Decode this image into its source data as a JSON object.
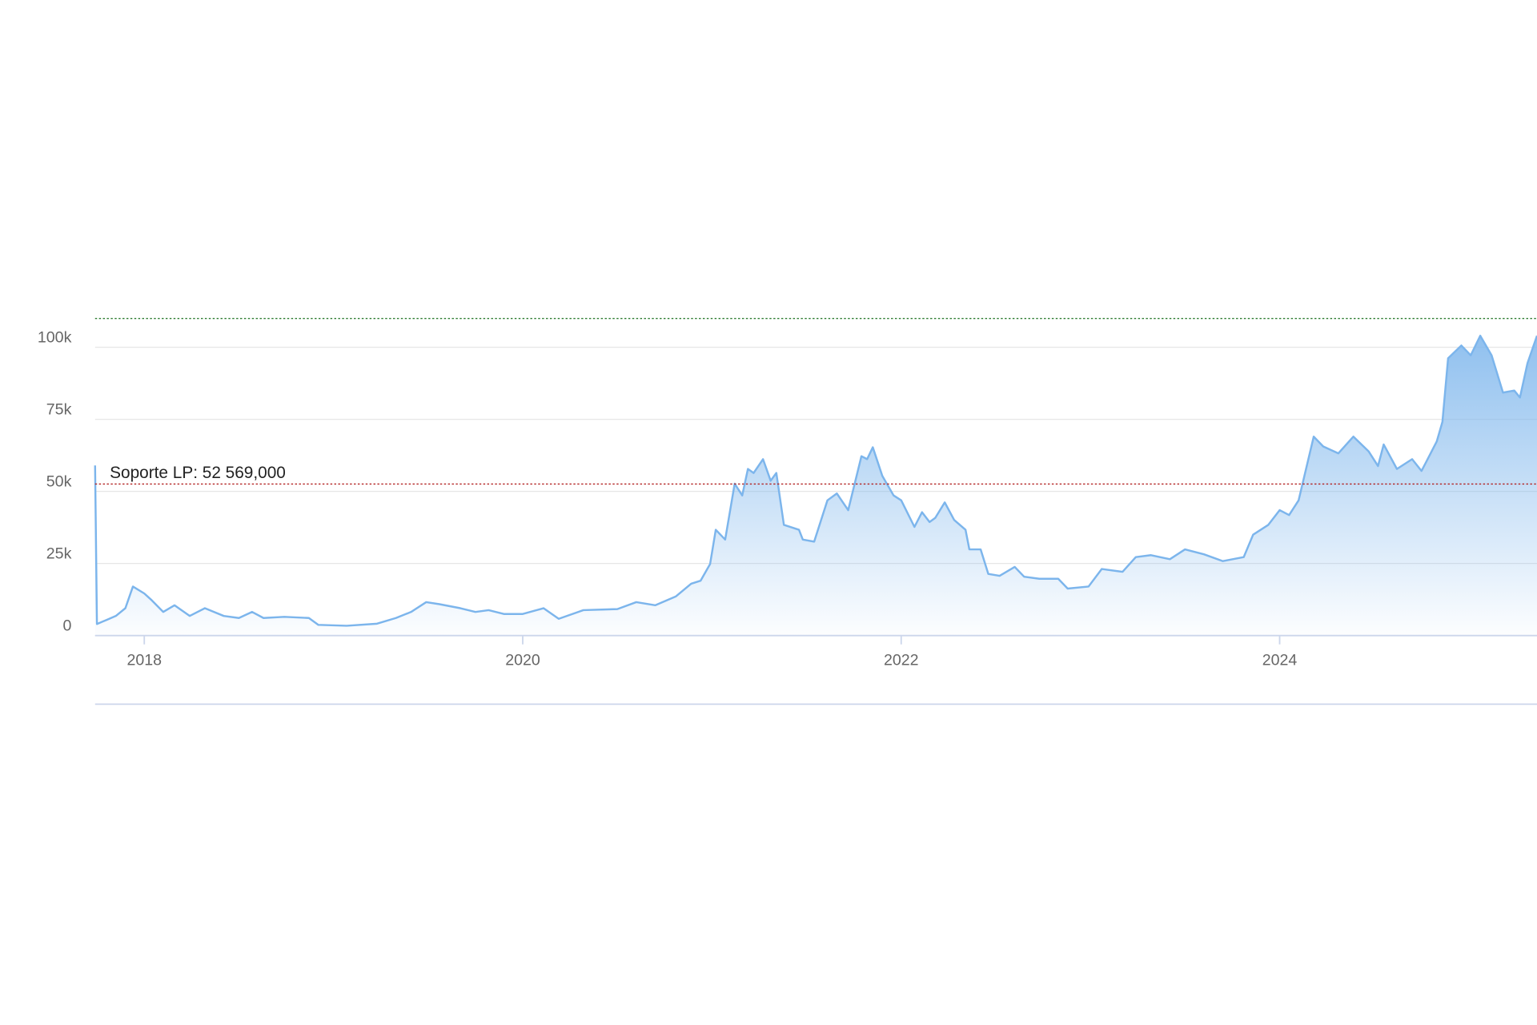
{
  "chart_data": {
    "type": "area",
    "color": "#7cb5ec",
    "x": [
      2017.74,
      2017.75,
      2017.8,
      2017.85,
      2017.9,
      2017.94,
      2018.0,
      2018.04,
      2018.1,
      2018.16,
      2018.24,
      2018.32,
      2018.42,
      2018.5,
      2018.57,
      2018.63,
      2018.74,
      2018.87,
      2018.92,
      2019.07,
      2019.23,
      2019.33,
      2019.41,
      2019.49,
      2019.56,
      2019.67,
      2019.75,
      2019.82,
      2019.9,
      2020.0,
      2020.11,
      2020.19,
      2020.32,
      2020.5,
      2020.6,
      2020.7,
      2020.81,
      2020.89,
      2020.94,
      2020.99,
      2021.02,
      2021.07,
      2021.12,
      2021.16,
      2021.19,
      2021.22,
      2021.27,
      2021.31,
      2021.34,
      2021.38,
      2021.46,
      2021.48,
      2021.54,
      2021.61,
      2021.66,
      2021.72,
      2021.79,
      2021.82,
      2021.85,
      2021.9,
      2021.96,
      2022.0,
      2022.07,
      2022.11,
      2022.15,
      2022.18,
      2022.23,
      2022.28,
      2022.34,
      2022.36,
      2022.42,
      2022.46,
      2022.52,
      2022.6,
      2022.65,
      2022.73,
      2022.83,
      2022.88,
      2022.99,
      2023.06,
      2023.17,
      2023.24,
      2023.32,
      2023.42,
      2023.5,
      2023.6,
      2023.7,
      2023.81,
      2023.86,
      2023.94,
      2024.0,
      2024.05,
      2024.1,
      2024.18,
      2024.23,
      2024.31,
      2024.39,
      2024.47,
      2024.52,
      2024.55,
      2024.62,
      2024.7,
      2024.75,
      2024.83,
      2024.86,
      2024.89,
      2024.96,
      2025.01,
      2025.06,
      2025.12,
      2025.18,
      2025.24,
      2025.27,
      2025.31,
      2025.36
    ],
    "values": [
      59000,
      4000,
      5400,
      6800,
      9500,
      17000,
      14600,
      12200,
      8200,
      10500,
      6800,
      9500,
      6800,
      6100,
      8200,
      6100,
      6500,
      6100,
      3700,
      3400,
      4100,
      6100,
      8200,
      11600,
      10900,
      9500,
      8200,
      8800,
      7500,
      7500,
      9500,
      5800,
      8800,
      9200,
      11600,
      10500,
      13600,
      18000,
      19000,
      24800,
      36700,
      33300,
      52700,
      48600,
      57800,
      56400,
      61200,
      53700,
      56400,
      38400,
      36700,
      33300,
      32600,
      46900,
      49300,
      43500,
      62200,
      61200,
      65300,
      55400,
      48600,
      46900,
      37700,
      42800,
      39400,
      40800,
      46200,
      40100,
      36700,
      29900,
      29900,
      21400,
      20700,
      23800,
      20400,
      19700,
      19700,
      16300,
      17000,
      23100,
      22100,
      27200,
      27900,
      26500,
      29900,
      28200,
      25800,
      27200,
      35000,
      38400,
      43500,
      41800,
      46900,
      69000,
      65600,
      63200,
      69000,
      63900,
      58800,
      66300,
      57800,
      61200,
      57100,
      67300,
      74100,
      96200,
      100600,
      97200,
      104000,
      97200,
      84300,
      85000,
      82600,
      94500,
      104000
    ],
    "xlim": [
      2017.74,
      2025.36
    ],
    "xticks": [
      2018,
      2020,
      2022,
      2024
    ],
    "ylim": [
      0,
      110000
    ],
    "yticks": [
      0,
      {
        "value": 25000,
        "label": "25k"
      },
      {
        "value": 50000,
        "label": "50k"
      },
      {
        "value": 75000,
        "label": "75k"
      },
      {
        "value": 100000,
        "label": "100k"
      }
    ],
    "grid": true,
    "reference_lines": [
      {
        "value": 110000,
        "color": "#2e7d32"
      },
      {
        "value": 52569,
        "color": "#b22222",
        "label": "Soporte LP: 52 569,000"
      }
    ]
  }
}
